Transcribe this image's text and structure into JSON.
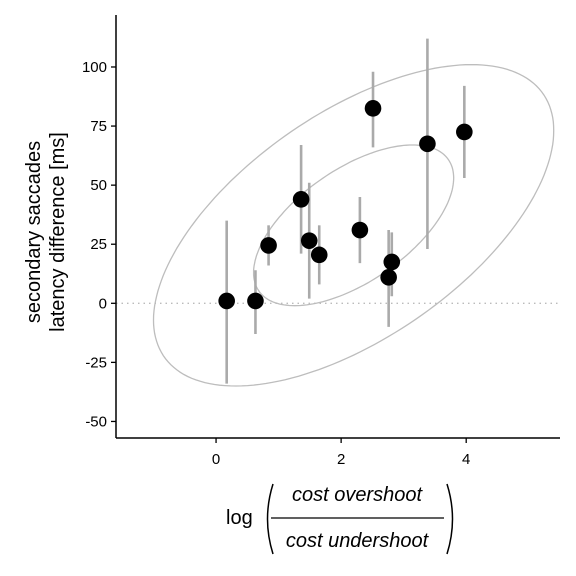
{
  "chart_data": {
    "type": "scatter",
    "xlim": [
      -1.6,
      5.5
    ],
    "ylim": [
      -57,
      122
    ],
    "xticks": [
      0,
      2,
      4
    ],
    "yticks": [
      -50,
      -25,
      0,
      25,
      50,
      75,
      100
    ],
    "ylabel_lines": [
      "secondary saccades",
      "latency difference [ms]"
    ],
    "xlabel": {
      "prefix": "log",
      "numerator": "cost overshoot",
      "denominator": "cost undershoot"
    },
    "reference_line_y": 0,
    "grid": false,
    "legend": "none",
    "colors": {
      "point": "#000000",
      "errorbar": "#aaaaaa",
      "ellipse": "#bdbdbd",
      "refline": "#bbbbbb",
      "axis": "#000000"
    },
    "points": [
      {
        "x": 0.17,
        "y": 1,
        "ylo": -34,
        "yhi": 35
      },
      {
        "x": 0.63,
        "y": 1,
        "ylo": -13,
        "yhi": 14
      },
      {
        "x": 0.84,
        "y": 24.5,
        "ylo": 16,
        "yhi": 33
      },
      {
        "x": 1.36,
        "y": 44,
        "ylo": 21,
        "yhi": 67
      },
      {
        "x": 1.49,
        "y": 26.5,
        "ylo": 2,
        "yhi": 51
      },
      {
        "x": 1.65,
        "y": 20.5,
        "ylo": 8,
        "yhi": 33
      },
      {
        "x": 2.3,
        "y": 31,
        "ylo": 17,
        "yhi": 45
      },
      {
        "x": 2.51,
        "y": 82.5,
        "ylo": 66,
        "yhi": 98
      },
      {
        "x": 2.76,
        "y": 11,
        "ylo": -10,
        "yhi": 31
      },
      {
        "x": 2.81,
        "y": 17.5,
        "ylo": 3,
        "yhi": 30
      },
      {
        "x": 3.38,
        "y": 67.5,
        "ylo": 23,
        "yhi": 112
      },
      {
        "x": 3.97,
        "y": 72.5,
        "ylo": 53,
        "yhi": 92
      }
    ],
    "ellipses": [
      {
        "cx": 2.2,
        "cy": 33,
        "sx": 0.8,
        "sy": 17,
        "r": 0.59,
        "scale": 2.0
      },
      {
        "cx": 2.2,
        "cy": 33,
        "sx": 0.8,
        "sy": 17,
        "r": 0.59,
        "scale": 4.0
      }
    ]
  }
}
